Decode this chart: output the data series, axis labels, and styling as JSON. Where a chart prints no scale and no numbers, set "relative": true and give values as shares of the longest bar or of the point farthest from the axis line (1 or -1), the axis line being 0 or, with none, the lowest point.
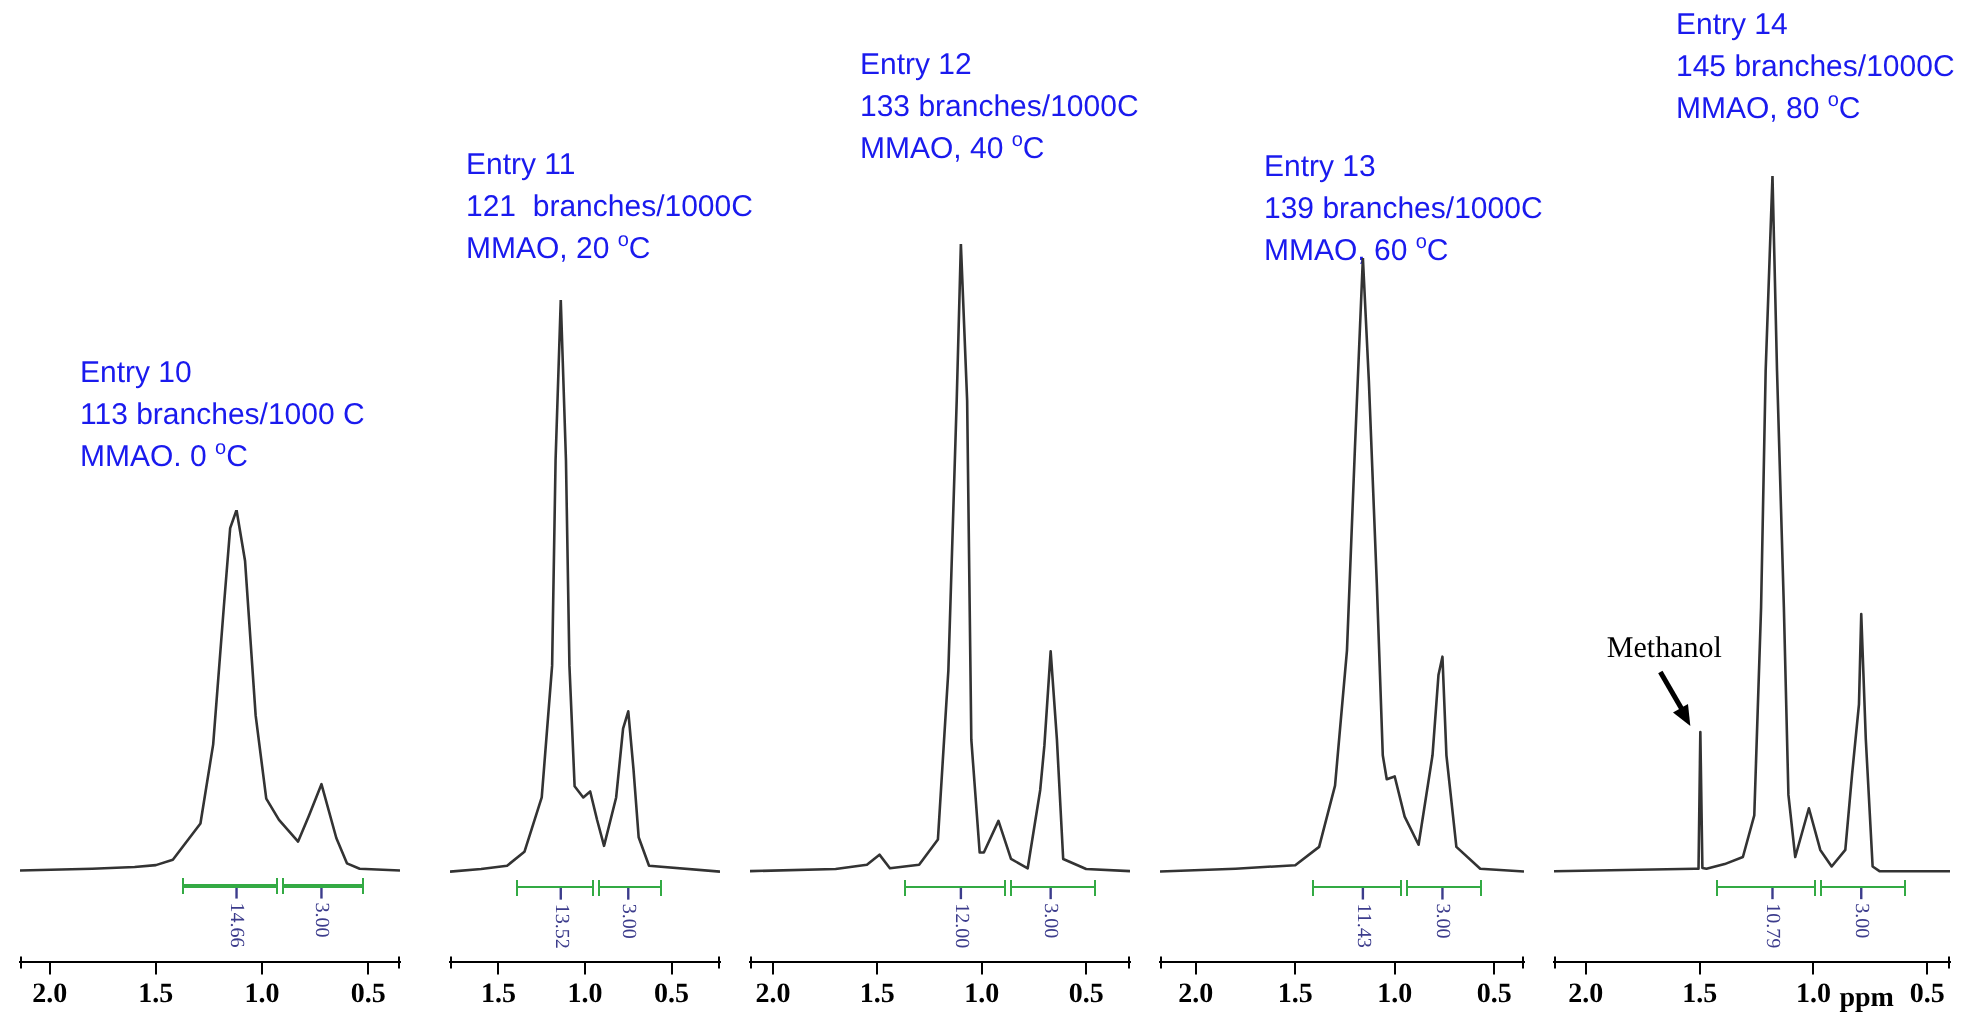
{
  "chart_data": [
    {
      "type": "line",
      "title": "Entry 10",
      "subtitle": "113 branches/1000 C\nMMAO. 0 $^{o}$C",
      "relative": true,
      "legend": false,
      "grid": false,
      "tick_labels": "x",
      "xlim": [
        2.14,
        0.35
      ],
      "xticks": [
        {
          "value": 2.0,
          "label": "2.0"
        },
        {
          "value": 1.5,
          "label": "1.5"
        },
        {
          "value": 1.0,
          "label": "1.0"
        },
        {
          "value": 0.5,
          "label": "0.5"
        }
      ],
      "series": [
        {
          "color": "#333333",
          "x": [
            2.14,
            1.8,
            1.6,
            1.5,
            1.42,
            1.29,
            1.23,
            1.18,
            1.15,
            1.12,
            1.08,
            1.03,
            0.98,
            0.92,
            0.83,
            0.78,
            0.72,
            0.65,
            0.6,
            0.54,
            0.35
          ],
          "values": [
            0.203,
            0.207,
            0.211,
            0.215,
            0.227,
            0.307,
            0.482,
            0.785,
            0.96,
            1,
            0.888,
            0.546,
            0.362,
            0.315,
            0.267,
            0.323,
            0.394,
            0.275,
            0.219,
            0.207,
            0.203
          ]
        }
      ],
      "annotations": [
        "14.66",
        "3.00"
      ]
    },
    {
      "type": "line",
      "title": "Entry 11",
      "subtitle": "121  branches/1000C\nMMAO, 20 $^{o}$C",
      "relative": true,
      "legend": false,
      "grid": false,
      "tick_labels": "x",
      "xlim": [
        1.78,
        0.22
      ],
      "xticks": [
        {
          "value": 1.5,
          "label": "1.5"
        },
        {
          "value": 1.0,
          "label": "1.0"
        },
        {
          "value": 0.5,
          "label": "0.5"
        }
      ],
      "series": [
        {
          "color": "#333333",
          "x": [
            1.78,
            1.6,
            1.45,
            1.35,
            1.25,
            1.19,
            1.17,
            1.14,
            1.11,
            1.09,
            1.06,
            1.01,
            0.97,
            0.93,
            0.89,
            0.82,
            0.78,
            0.75,
            0.72,
            0.69,
            0.63,
            0.22
          ],
          "values": [
            0.137,
            0.141,
            0.146,
            0.167,
            0.249,
            0.448,
            0.758,
            1,
            0.758,
            0.448,
            0.266,
            0.249,
            0.258,
            0.215,
            0.176,
            0.249,
            0.353,
            0.379,
            0.292,
            0.189,
            0.146,
            0.137
          ]
        }
      ],
      "annotations": [
        "13.52",
        "3.00"
      ]
    },
    {
      "type": "line",
      "title": "Entry 12",
      "subtitle": "133 branches/1000C\nMMAO, 40 $^{o}$C",
      "relative": true,
      "legend": false,
      "grid": false,
      "tick_labels": "x",
      "xlim": [
        2.11,
        0.29
      ],
      "xticks": [
        {
          "value": 2.0,
          "label": "2.0"
        },
        {
          "value": 1.5,
          "label": "1.5"
        },
        {
          "value": 1.0,
          "label": "1.0"
        },
        {
          "value": 0.5,
          "label": "0.5"
        }
      ],
      "series": [
        {
          "color": "#333333",
          "x": [
            2.11,
            1.7,
            1.55,
            1.49,
            1.44,
            1.3,
            1.21,
            1.16,
            1.12,
            1.1,
            1.07,
            1.05,
            1.01,
            0.99,
            0.92,
            0.86,
            0.78,
            0.72,
            0.7,
            0.67,
            0.64,
            0.61,
            0.5,
            0.29
          ],
          "values": [
            0.127,
            0.13,
            0.136,
            0.15,
            0.131,
            0.136,
            0.171,
            0.406,
            0.782,
            1,
            0.782,
            0.31,
            0.153,
            0.153,
            0.197,
            0.144,
            0.131,
            0.24,
            0.302,
            0.433,
            0.31,
            0.144,
            0.13,
            0.127
          ]
        }
      ],
      "annotations": [
        "12.00",
        "3.00"
      ]
    },
    {
      "type": "line",
      "title": "Entry 13",
      "subtitle": "139 branches/1000C\nMMAO, 60 $^{o}$C",
      "relative": true,
      "legend": false,
      "grid": false,
      "tick_labels": "x",
      "xlim": [
        2.18,
        0.35
      ],
      "xticks": [
        {
          "value": 2.0,
          "label": "2.0"
        },
        {
          "value": 1.5,
          "label": "1.5"
        },
        {
          "value": 1.0,
          "label": "1.0"
        },
        {
          "value": 0.5,
          "label": "0.5"
        }
      ],
      "series": [
        {
          "color": "#333333",
          "x": [
            2.18,
            1.8,
            1.5,
            1.38,
            1.3,
            1.24,
            1.2,
            1.16,
            1.13,
            1.09,
            1.06,
            1.04,
            1.0,
            0.95,
            0.88,
            0.81,
            0.78,
            0.76,
            0.74,
            0.69,
            0.57,
            0.35
          ],
          "values": [
            0.129,
            0.133,
            0.138,
            0.164,
            0.251,
            0.443,
            0.73,
            1,
            0.826,
            0.538,
            0.294,
            0.26,
            0.264,
            0.207,
            0.167,
            0.294,
            0.408,
            0.434,
            0.294,
            0.164,
            0.133,
            0.129
          ]
        }
      ],
      "annotations": [
        "11.43",
        "3.00"
      ]
    },
    {
      "type": "line",
      "title": "Entry 14",
      "subtitle": "145 branches/1000C\nMMAO, 80 $^{o}$C",
      "xlabel": "ppm",
      "relative": true,
      "legend": false,
      "grid": false,
      "tick_labels": "x",
      "xlim": [
        2.14,
        0.4
      ],
      "xticks": [
        {
          "value": 2.0,
          "label": "2.0"
        },
        {
          "value": 1.5,
          "label": "1.5"
        },
        {
          "value": 1.0,
          "label": "1.0"
        },
        {
          "value": 0.5,
          "label": "0.5"
        }
      ],
      "series": [
        {
          "color": "#333333",
          "x": [
            2.14,
            1.52,
            1.505,
            1.497,
            1.488,
            1.47,
            1.39,
            1.31,
            1.26,
            1.23,
            1.21,
            1.18,
            1.16,
            1.13,
            1.11,
            1.08,
            1.02,
            0.97,
            0.92,
            0.86,
            0.83,
            0.8,
            0.79,
            0.77,
            0.74,
            0.71,
            0.4
          ],
          "values": [
            0.116,
            0.119,
            0.119,
            0.293,
            0.12,
            0.119,
            0.125,
            0.134,
            0.187,
            0.452,
            0.752,
            1,
            0.752,
            0.452,
            0.213,
            0.134,
            0.196,
            0.143,
            0.122,
            0.143,
            0.24,
            0.328,
            0.443,
            0.284,
            0.122,
            0.116,
            0.116
          ]
        }
      ],
      "annotations": [
        "10.79",
        "3.00",
        {
          "text": "Methanol",
          "x": 1.497,
          "y": 0.293
        }
      ]
    }
  ]
}
